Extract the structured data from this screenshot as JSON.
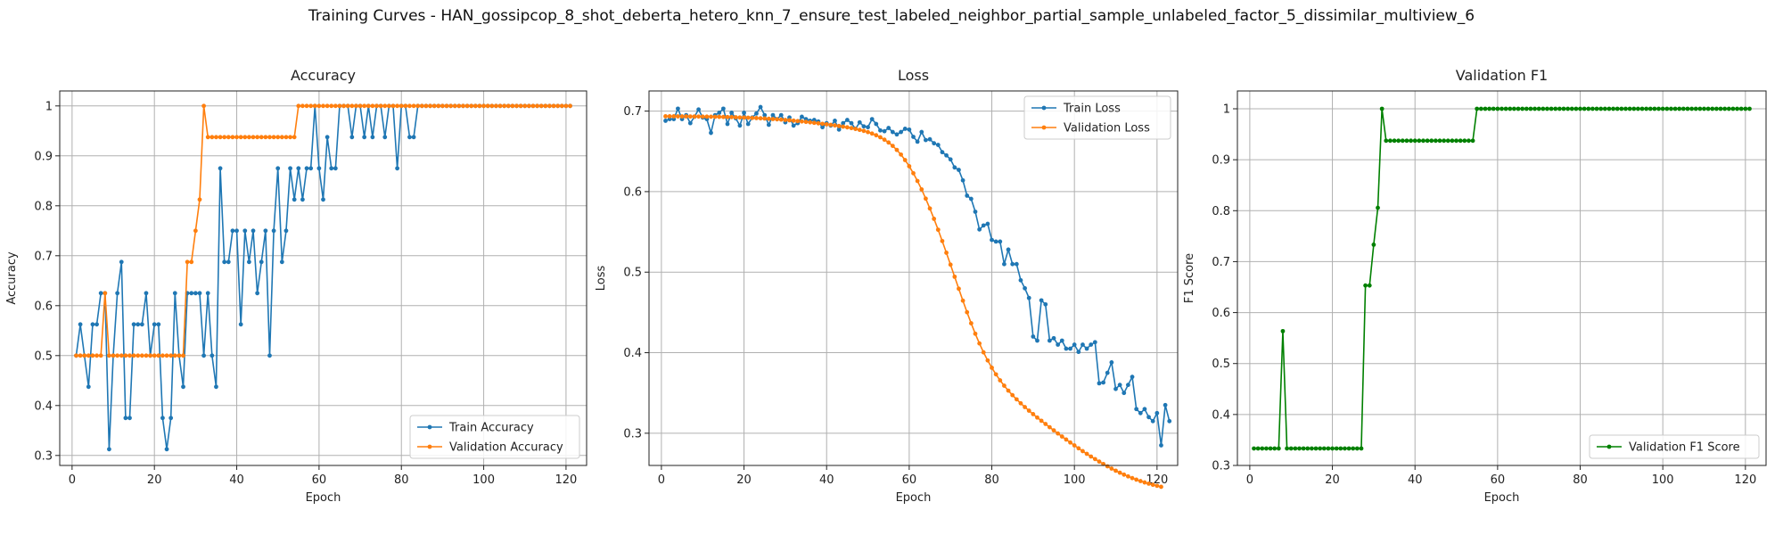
{
  "figure": {
    "title": "Training Curves - HAN_gossipcop_8_shot_deberta_hetero_knn_7_ensure_test_labeled_neighbor_partial_sample_unlabeled_factor_5_dissimilar_multiview_6"
  },
  "colors": {
    "blue": "#1f77b4",
    "orange": "#ff7f0e",
    "green": "#008000",
    "grid": "#b0b0b0"
  },
  "chart_data": [
    {
      "type": "line",
      "title": "Accuracy",
      "xlabel": "Epoch",
      "ylabel": "Accuracy",
      "xlim": [
        -3,
        125
      ],
      "ylim": [
        0.28,
        1.03
      ],
      "xticks": [
        0,
        20,
        40,
        60,
        80,
        100,
        120
      ],
      "yticks": [
        0.3,
        0.4,
        0.5,
        0.6,
        0.7,
        0.8,
        0.9,
        1.0
      ],
      "grid": true,
      "legend": "lower-right",
      "series": [
        {
          "name": "Train Accuracy",
          "color": "#1f77b4",
          "values": [
            0.5,
            0.5625,
            0.5,
            0.4375,
            0.5625,
            0.5625,
            0.625,
            0.625,
            0.3125,
            0.5,
            0.625,
            0.6875,
            0.375,
            0.375,
            0.5625,
            0.5625,
            0.5625,
            0.625,
            0.5,
            0.5625,
            0.5625,
            0.375,
            0.3125,
            0.375,
            0.625,
            0.5,
            0.4375,
            0.625,
            0.625,
            0.625,
            0.625,
            0.5,
            0.625,
            0.5,
            0.4375,
            0.875,
            0.6875,
            0.6875,
            0.75,
            0.75,
            0.5625,
            0.75,
            0.6875,
            0.75,
            0.625,
            0.6875,
            0.75,
            0.5,
            0.75,
            0.875,
            0.6875,
            0.75,
            0.875,
            0.8125,
            0.875,
            0.8125,
            0.875,
            0.875,
            1.0,
            0.875,
            0.8125,
            0.9375,
            0.875,
            0.875,
            1.0,
            1.0,
            1.0,
            0.9375,
            1.0,
            1.0,
            0.9375,
            1.0,
            0.9375,
            1.0,
            1.0,
            0.9375,
            1.0,
            1.0,
            0.875,
            1.0,
            1.0,
            0.9375,
            0.9375,
            1.0,
            1.0,
            1.0,
            1.0,
            1.0,
            1.0,
            1.0,
            1.0,
            1.0,
            1.0,
            1.0,
            1.0,
            1.0,
            1.0,
            1.0,
            1.0,
            1.0,
            1.0,
            1.0,
            1.0,
            1.0,
            1.0,
            1.0,
            1.0,
            1.0,
            1.0,
            1.0,
            1.0,
            1.0,
            1.0,
            1.0,
            1.0,
            1.0,
            1.0,
            1.0,
            1.0,
            1.0,
            1.0
          ]
        },
        {
          "name": "Validation Accuracy",
          "color": "#ff7f0e",
          "values": [
            0.5,
            0.5,
            0.5,
            0.5,
            0.5,
            0.5,
            0.5,
            0.625,
            0.5,
            0.5,
            0.5,
            0.5,
            0.5,
            0.5,
            0.5,
            0.5,
            0.5,
            0.5,
            0.5,
            0.5,
            0.5,
            0.5,
            0.5,
            0.5,
            0.5,
            0.5,
            0.5,
            0.6875,
            0.6875,
            0.75,
            0.8125,
            1.0,
            0.9375,
            0.9375,
            0.9375,
            0.9375,
            0.9375,
            0.9375,
            0.9375,
            0.9375,
            0.9375,
            0.9375,
            0.9375,
            0.9375,
            0.9375,
            0.9375,
            0.9375,
            0.9375,
            0.9375,
            0.9375,
            0.9375,
            0.9375,
            0.9375,
            0.9375,
            1.0,
            1.0,
            1.0,
            1.0,
            1.0,
            1.0,
            1.0,
            1.0,
            1.0,
            1.0,
            1.0,
            1.0,
            1.0,
            1.0,
            1.0,
            1.0,
            1.0,
            1.0,
            1.0,
            1.0,
            1.0,
            1.0,
            1.0,
            1.0,
            1.0,
            1.0,
            1.0,
            1.0,
            1.0,
            1.0,
            1.0,
            1.0,
            1.0,
            1.0,
            1.0,
            1.0,
            1.0,
            1.0,
            1.0,
            1.0,
            1.0,
            1.0,
            1.0,
            1.0,
            1.0,
            1.0,
            1.0,
            1.0,
            1.0,
            1.0,
            1.0,
            1.0,
            1.0,
            1.0,
            1.0,
            1.0,
            1.0,
            1.0,
            1.0,
            1.0,
            1.0,
            1.0,
            1.0,
            1.0,
            1.0,
            1.0,
            1.0
          ]
        }
      ]
    },
    {
      "type": "line",
      "title": "Loss",
      "xlabel": "Epoch",
      "ylabel": "Loss",
      "xlim": [
        -3,
        125
      ],
      "ylim": [
        0.26,
        0.725
      ],
      "xticks": [
        0,
        20,
        40,
        60,
        80,
        100,
        120
      ],
      "yticks": [
        0.3,
        0.4,
        0.5,
        0.6,
        0.7
      ],
      "grid": true,
      "legend": "top-right",
      "series": [
        {
          "name": "Train Loss",
          "color": "#1f77b4",
          "values": [
            0.688,
            0.69,
            0.69,
            0.703,
            0.69,
            0.695,
            0.685,
            0.693,
            0.702,
            0.692,
            0.69,
            0.673,
            0.695,
            0.698,
            0.703,
            0.684,
            0.698,
            0.691,
            0.682,
            0.698,
            0.684,
            0.692,
            0.697,
            0.705,
            0.695,
            0.683,
            0.695,
            0.69,
            0.695,
            0.686,
            0.692,
            0.682,
            0.685,
            0.693,
            0.69,
            0.688,
            0.689,
            0.687,
            0.68,
            0.685,
            0.682,
            0.688,
            0.677,
            0.685,
            0.689,
            0.685,
            0.678,
            0.686,
            0.681,
            0.68,
            0.69,
            0.684,
            0.676,
            0.675,
            0.679,
            0.674,
            0.671,
            0.674,
            0.678,
            0.677,
            0.668,
            0.662,
            0.674,
            0.664,
            0.665,
            0.66,
            0.658,
            0.649,
            0.645,
            0.64,
            0.63,
            0.627,
            0.614,
            0.595,
            0.591,
            0.575,
            0.553,
            0.558,
            0.56,
            0.54,
            0.538,
            0.538,
            0.51,
            0.528,
            0.51,
            0.51,
            0.49,
            0.48,
            0.468,
            0.42,
            0.415,
            0.465,
            0.46,
            0.415,
            0.418,
            0.41,
            0.415,
            0.405,
            0.405,
            0.41,
            0.401,
            0.41,
            0.405,
            0.41,
            0.413,
            0.362,
            0.363,
            0.375,
            0.388,
            0.355,
            0.36,
            0.35,
            0.36,
            0.37,
            0.33,
            0.325,
            0.33,
            0.32,
            0.315,
            0.325,
            0.285,
            0.335,
            0.315
          ]
        },
        {
          "name": "Validation Loss",
          "color": "#ff7f0e",
          "values": [
            0.6935,
            0.6935,
            0.6935,
            0.6934,
            0.6934,
            0.6934,
            0.6933,
            0.6933,
            0.6932,
            0.6931,
            0.6931,
            0.693,
            0.6929,
            0.6928,
            0.6927,
            0.6926,
            0.6925,
            0.6923,
            0.6921,
            0.692,
            0.6918,
            0.6915,
            0.6913,
            0.691,
            0.6908,
            0.6905,
            0.6901,
            0.6898,
            0.6894,
            0.689,
            0.6886,
            0.6881,
            0.6876,
            0.6871,
            0.6866,
            0.686,
            0.6854,
            0.6848,
            0.6842,
            0.6836,
            0.6829,
            0.6822,
            0.6815,
            0.6807,
            0.6798,
            0.6789,
            0.6779,
            0.6767,
            0.6754,
            0.6739,
            0.6721,
            0.67,
            0.6675,
            0.6645,
            0.661,
            0.6568,
            0.6518,
            0.646,
            0.6392,
            0.6315,
            0.6228,
            0.6132,
            0.6027,
            0.5913,
            0.5791,
            0.5662,
            0.5527,
            0.5386,
            0.5241,
            0.5093,
            0.4943,
            0.4794,
            0.4646,
            0.4502,
            0.4365,
            0.4235,
            0.4115,
            0.4004,
            0.3904,
            0.3813,
            0.3731,
            0.3657,
            0.359,
            0.3529,
            0.3473,
            0.3421,
            0.3372,
            0.3325,
            0.328,
            0.3237,
            0.3195,
            0.3155,
            0.3115,
            0.3075,
            0.3036,
            0.2997,
            0.2959,
            0.2922,
            0.2885,
            0.2849,
            0.2813,
            0.2778,
            0.2744,
            0.2711,
            0.2679,
            0.2648,
            0.2618,
            0.2589,
            0.2561,
            0.2535,
            0.251,
            0.2486,
            0.2464,
            0.2443,
            0.2424,
            0.2406,
            0.2389,
            0.2374,
            0.236,
            0.2347,
            0.2335
          ]
        }
      ]
    },
    {
      "type": "line",
      "title": "Validation F1",
      "xlabel": "Epoch",
      "ylabel": "F1 Score",
      "xlim": [
        -3,
        125
      ],
      "ylim": [
        0.3,
        1.035
      ],
      "xticks": [
        0,
        20,
        40,
        60,
        80,
        100,
        120
      ],
      "yticks": [
        0.3,
        0.4,
        0.5,
        0.6,
        0.7,
        0.8,
        0.9,
        1.0
      ],
      "grid": true,
      "legend": "lower-right",
      "series": [
        {
          "name": "Validation F1 Score",
          "color": "#008000",
          "values": [
            0.3333,
            0.3333,
            0.3333,
            0.3333,
            0.3333,
            0.3333,
            0.3333,
            0.5636,
            0.3333,
            0.3333,
            0.3333,
            0.3333,
            0.3333,
            0.3333,
            0.3333,
            0.3333,
            0.3333,
            0.3333,
            0.3333,
            0.3333,
            0.3333,
            0.3333,
            0.3333,
            0.3333,
            0.3333,
            0.3333,
            0.3333,
            0.6532,
            0.6532,
            0.7333,
            0.8057,
            1.0,
            0.9373,
            0.9373,
            0.9373,
            0.9373,
            0.9373,
            0.9373,
            0.9373,
            0.9373,
            0.9373,
            0.9373,
            0.9373,
            0.9373,
            0.9373,
            0.9373,
            0.9373,
            0.9373,
            0.9373,
            0.9373,
            0.9373,
            0.9373,
            0.9373,
            0.9373,
            1.0,
            1.0,
            1.0,
            1.0,
            1.0,
            1.0,
            1.0,
            1.0,
            1.0,
            1.0,
            1.0,
            1.0,
            1.0,
            1.0,
            1.0,
            1.0,
            1.0,
            1.0,
            1.0,
            1.0,
            1.0,
            1.0,
            1.0,
            1.0,
            1.0,
            1.0,
            1.0,
            1.0,
            1.0,
            1.0,
            1.0,
            1.0,
            1.0,
            1.0,
            1.0,
            1.0,
            1.0,
            1.0,
            1.0,
            1.0,
            1.0,
            1.0,
            1.0,
            1.0,
            1.0,
            1.0,
            1.0,
            1.0,
            1.0,
            1.0,
            1.0,
            1.0,
            1.0,
            1.0,
            1.0,
            1.0,
            1.0,
            1.0,
            1.0,
            1.0,
            1.0,
            1.0,
            1.0,
            1.0,
            1.0,
            1.0,
            1.0
          ]
        }
      ]
    }
  ]
}
